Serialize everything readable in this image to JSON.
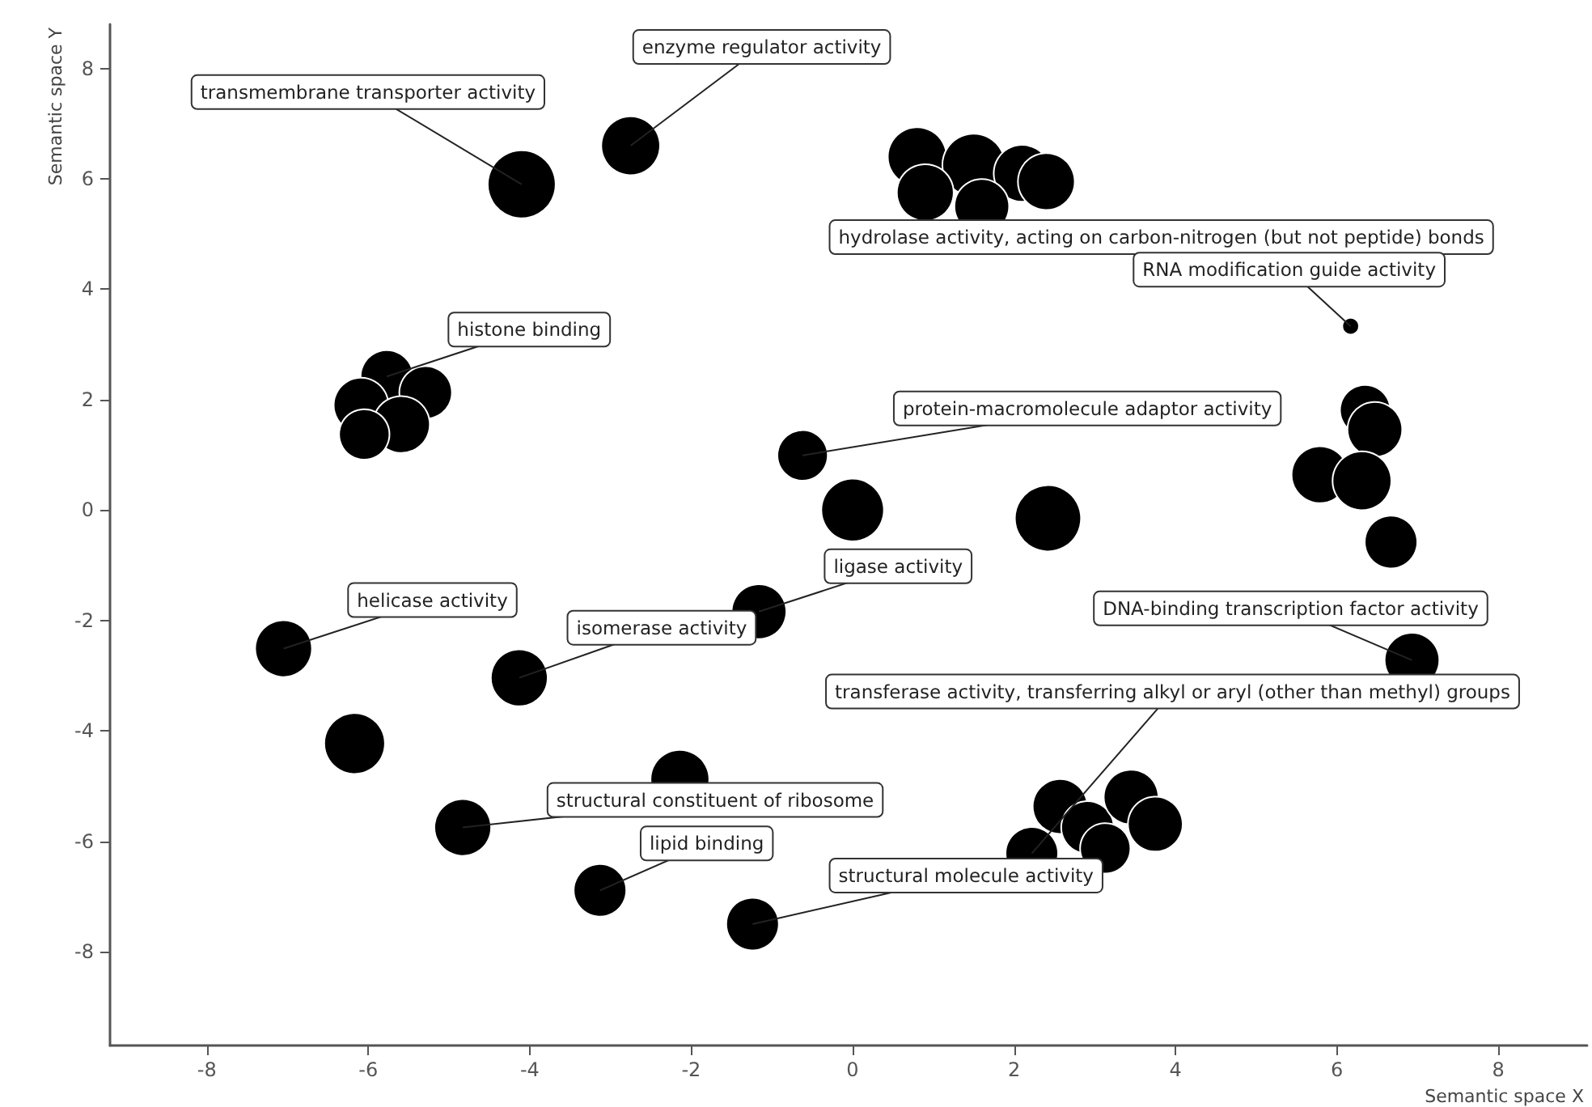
{
  "chart_data": {
    "type": "bubble",
    "xlabel": "Semantic space X",
    "ylabel": "Semantic space Y",
    "xlim": [
      -9.2,
      9.1
    ],
    "xticks": [
      -8,
      -6,
      -4,
      -2,
      0,
      2,
      4,
      6,
      8
    ],
    "ylim": [
      -9.7,
      8.8
    ],
    "yticks": [
      -8,
      -6,
      -4,
      -2,
      0,
      2,
      4,
      6,
      8
    ],
    "grid": false,
    "series": [
      {
        "color": "#000000",
        "x": [
          -4.1,
          -2.75,
          0.8,
          1.5,
          2.1,
          2.4,
          0.9,
          1.6,
          6.17,
          -5.77,
          -5.29,
          -6.09,
          -5.59,
          -6.05,
          -0.62,
          0,
          2.42,
          6.35,
          6.47,
          5.79,
          6.31,
          6.67,
          -1.16,
          -7.05,
          -4.13,
          6.93,
          -6.17,
          -2.14,
          -4.83,
          -3.13,
          -1.24,
          2.22,
          2.57,
          2.91,
          3.45,
          3.13,
          3.75
        ],
        "values": [
          5.9,
          6.6,
          6.4,
          6.25,
          6.1,
          5.95,
          5.75,
          5.5,
          3.33,
          2.42,
          2.13,
          1.9,
          1.55,
          1.37,
          0.99,
          0,
          -0.15,
          1.81,
          1.46,
          0.64,
          0.53,
          -0.58,
          -1.84,
          -2.51,
          -3.04,
          -2.72,
          -4.23,
          -4.88,
          -5.75,
          -6.89,
          -7.5,
          -6.22,
          -5.37,
          -5.75,
          -5.2,
          -6.13,
          -5.69
        ],
        "sizes": [
          1.0,
          0.75,
          0.75,
          0.85,
          0.7,
          0.7,
          0.7,
          0.65,
          0.06,
          0.6,
          0.6,
          0.65,
          0.7,
          0.55,
          0.55,
          0.85,
          0.95,
          0.55,
          0.65,
          0.7,
          0.75,
          0.6,
          0.65,
          0.7,
          0.7,
          0.65,
          0.8,
          0.75,
          0.7,
          0.6,
          0.6,
          0.6,
          0.65,
          0.6,
          0.65,
          0.55,
          0.65
        ]
      }
    ],
    "annotations": [
      {
        "text": "transmembrane transporter activity",
        "x": -4.1,
        "y": 5.9
      },
      {
        "text": "enzyme regulator activity",
        "x": -2.75,
        "y": 6.6
      },
      {
        "text": "hydrolase activity, acting on carbon-nitrogen (but not peptide) bonds",
        "x": 1.6,
        "y": 5.5
      },
      {
        "text": "RNA modification guide activity",
        "x": 6.17,
        "y": 3.33
      },
      {
        "text": "histone binding",
        "x": -5.77,
        "y": 2.42
      },
      {
        "text": "protein-macromolecule adaptor activity",
        "x": -0.62,
        "y": 0.99
      },
      {
        "text": "ligase activity",
        "x": -1.16,
        "y": -1.84
      },
      {
        "text": "helicase activity",
        "x": -7.05,
        "y": -2.51
      },
      {
        "text": "isomerase activity",
        "x": -4.13,
        "y": -3.04
      },
      {
        "text": "DNA-binding transcription factor activity",
        "x": 6.93,
        "y": -2.72
      },
      {
        "text": "transferase activity, transferring alkyl or aryl (other than methyl) groups",
        "x": 2.22,
        "y": -6.22
      },
      {
        "text": "structural constituent of ribosome",
        "x": -4.83,
        "y": -5.75
      },
      {
        "text": "lipid binding",
        "x": -3.13,
        "y": -6.89
      },
      {
        "text": "structural molecule activity",
        "x": -1.24,
        "y": -7.5
      }
    ]
  }
}
